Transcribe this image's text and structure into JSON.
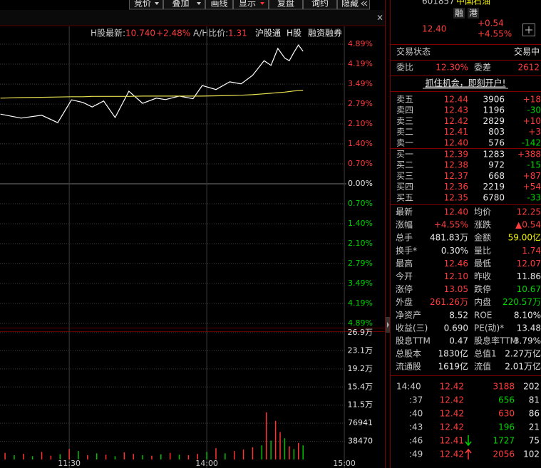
{
  "toolbar": {
    "buttons": [
      "竞价",
      "叠加",
      "画线",
      "显示",
      "复盘",
      "询约",
      "隐藏"
    ]
  },
  "info_bar": {
    "h_share_label": "H股最新:",
    "h_share_price": "10.740",
    "h_share_change": "+2.48%",
    "ah_ratio_label": "A/H比价:",
    "ah_ratio": "1.31",
    "tags": [
      "沪股通",
      "H股",
      "融资融券"
    ]
  },
  "chart_data": [
    {
      "type": "line",
      "x": [
        90,
        99,
        108,
        115,
        121,
        126,
        130,
        135,
        140,
        146,
        152,
        158,
        162,
        168,
        174,
        178,
        184,
        190,
        195,
        200,
        205,
        208,
        211,
        214,
        216,
        218,
        220,
        222
      ],
      "series": [
        {
          "color": "#ffffff",
          "values": [
            2.44,
            2.3,
            2.4,
            2.14,
            2.94,
            2.85,
            2.69,
            2.9,
            2.32,
            3.24,
            2.82,
            3.0,
            2.95,
            3.07,
            2.98,
            3.44,
            3.3,
            3.57,
            3.5,
            3.8,
            4.31,
            4.15,
            4.74,
            4.4,
            4.31,
            4.6,
            4.86,
            4.64
          ]
        },
        {
          "color": "#e6e050",
          "values": [
            3.0,
            3.02,
            3.03,
            3.04,
            3.05,
            3.05,
            3.06,
            3.06,
            3.06,
            3.06,
            3.07,
            3.07,
            3.07,
            3.07,
            3.07,
            3.07,
            3.08,
            3.09,
            3.1,
            3.12,
            3.15,
            3.17,
            3.19,
            3.21,
            3.23,
            3.25,
            3.26,
            3.27
          ]
        }
      ],
      "xlim": [
        89.8,
        257.7
      ],
      "xticks": [
        {
          "value": 120,
          "label": "11:30"
        },
        {
          "value": 180,
          "label": "14:00"
        },
        {
          "value": 240,
          "label": "15:00"
        }
      ],
      "ylim": [
        -4.89,
        4.89
      ],
      "yticks": [
        {
          "value": 4.89,
          "label": "4.89%"
        },
        {
          "value": 4.19,
          "label": "4.19%"
        },
        {
          "value": 3.49,
          "label": "3.49%"
        },
        {
          "value": 2.79,
          "label": "2.79%"
        },
        {
          "value": 2.1,
          "label": "2.10%"
        },
        {
          "value": 1.4,
          "label": "1.40%"
        },
        {
          "value": 0.7,
          "label": "0.70%"
        },
        {
          "value": 0,
          "label": "0.00%"
        },
        {
          "value": -0.7,
          "label": "0.70%"
        },
        {
          "value": -1.4,
          "label": "1.40%"
        },
        {
          "value": -2.1,
          "label": "2.10%"
        },
        {
          "value": -2.79,
          "label": "2.79%"
        },
        {
          "value": -3.49,
          "label": "3.49%"
        },
        {
          "value": -4.19,
          "label": "4.19%"
        },
        {
          "value": -4.89,
          "label": "4.89%"
        }
      ],
      "grid": true
    },
    {
      "type": "bar",
      "x": [
        92,
        96,
        100,
        104,
        108,
        112,
        116,
        120,
        124,
        128,
        132,
        136,
        140,
        144,
        148,
        152,
        156,
        160,
        164,
        168,
        172,
        176,
        180,
        184,
        188,
        192,
        196,
        200,
        204,
        206,
        208,
        210,
        212,
        214,
        216,
        218,
        220,
        222
      ],
      "values": [
        14000,
        9000,
        12000,
        7000,
        16000,
        8000,
        11000,
        22000,
        18000,
        9000,
        13000,
        10000,
        7000,
        15000,
        12000,
        9000,
        8000,
        11000,
        14000,
        10000,
        9000,
        12000,
        16000,
        24000,
        13000,
        18000,
        21000,
        26000,
        30000,
        100000,
        40000,
        82000,
        58000,
        45000,
        28000,
        22000,
        35000,
        30000
      ],
      "colors": [
        "#ff3232",
        "#00c000",
        "#ff3232",
        "#00c000",
        "#ff3232",
        "#ff3232",
        "#00c000",
        "#ff3232",
        "#00c000",
        "#ff3232",
        "#00c000",
        "#ff3232",
        "#00c000",
        "#ff3232",
        "#ff3232",
        "#00c000",
        "#ff3232",
        "#00c000",
        "#ff3232",
        "#00c000",
        "#ff3232",
        "#ff3232",
        "#00c000",
        "#ff3232",
        "#00c000",
        "#ff3232",
        "#ff3232",
        "#ff3232",
        "#00c000",
        "#ff3232",
        "#00c000",
        "#ff3232",
        "#ff3232",
        "#00c000",
        "#ff3232",
        "#00c000",
        "#ff3232",
        "#00c000"
      ],
      "ylim": [
        0,
        269290
      ],
      "yticks": [
        {
          "value": 269290,
          "label": "26.9万"
        },
        {
          "value": 230820,
          "label": "23.1万"
        },
        {
          "value": 192350,
          "label": "19.2万"
        },
        {
          "value": 153880,
          "label": "15.4万"
        },
        {
          "value": 115410,
          "label": "11.5万"
        },
        76941,
        38470
      ],
      "grid": true
    }
  ],
  "quote": {
    "code": "601857",
    "name": "中国石油",
    "badges": [
      "融",
      "港"
    ],
    "price": "12.40",
    "change": "+0.54",
    "change_pct": "+4.55%",
    "status_label": "交易状态",
    "status": "交易中",
    "ratio_label": "委比",
    "ratio": "12.30%",
    "diff_label": "委差",
    "diff": "2612",
    "promo": "抓住机会，即刻开户!",
    "order_book": [
      [
        "卖五",
        "12.44",
        "3906",
        "+18"
      ],
      [
        "卖四",
        "12.43",
        "1196",
        "-30"
      ],
      [
        "卖三",
        "12.42",
        "2829",
        "+10"
      ],
      [
        "卖二",
        "12.41",
        "803",
        "+3"
      ],
      [
        "卖一",
        "12.40",
        "576",
        "-142"
      ],
      [
        "买一",
        "12.39",
        "1283",
        "+388"
      ],
      [
        "买二",
        "12.38",
        "972",
        "-15"
      ],
      [
        "买三",
        "12.37",
        "668",
        "+87"
      ],
      [
        "买四",
        "12.36",
        "2219",
        "+54"
      ],
      [
        "买五",
        "12.35",
        "6780",
        "-33"
      ]
    ],
    "stats": [
      [
        "最新",
        "12.40",
        "均价",
        "12.25"
      ],
      [
        "涨幅",
        "+4.55%",
        "涨跌",
        "▲0.54"
      ],
      [
        "总手",
        "481.83万",
        "金额",
        "59.00亿"
      ],
      [
        "换手*",
        "0.30%",
        "量比",
        "1.74"
      ],
      [
        "最高",
        "12.46",
        "最低",
        "12.07"
      ],
      [
        "今开",
        "12.10",
        "昨收",
        "11.86"
      ],
      [
        "涨停",
        "13.05",
        "跌停",
        "10.67"
      ],
      [
        "外盘",
        "261.26万",
        "内盘",
        "220.57万"
      ],
      [
        "净资产",
        "8.52",
        "ROE",
        "8.10%"
      ],
      [
        "收益(三)",
        "0.690",
        "PE(动)*",
        "13.48"
      ],
      [
        "股息TTM",
        "0.47",
        "股息率TTM",
        "3.79%"
      ],
      [
        "总股本",
        "1830亿",
        "总值1",
        "2.27万亿"
      ],
      [
        "流通股",
        "1619亿",
        "流值",
        "2.01万亿"
      ]
    ],
    "trades": [
      [
        "14:40",
        "12.42",
        "3188",
        "202"
      ],
      [
        ":37",
        "12.42",
        "656",
        "81"
      ],
      [
        ":40",
        "12.42",
        "630",
        "86"
      ],
      [
        ":43",
        "12.42",
        "196",
        "21"
      ],
      [
        ":46",
        "12.41",
        "1727",
        "75"
      ],
      [
        ":49",
        "12.42",
        "2056",
        "102"
      ]
    ]
  }
}
